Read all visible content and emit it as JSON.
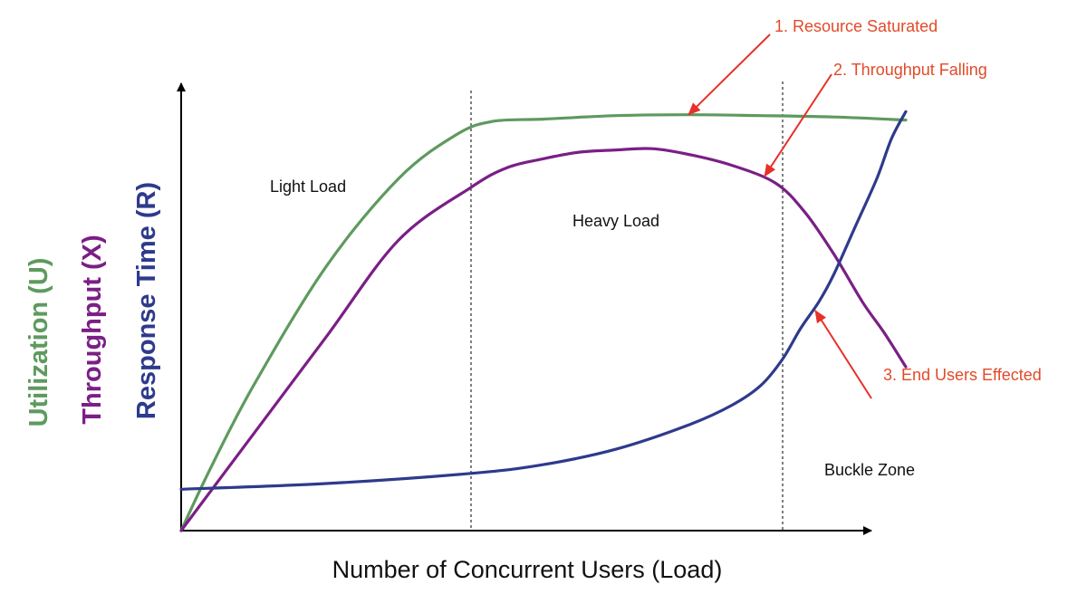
{
  "chart_data": {
    "type": "line",
    "title": "",
    "xlabel": "Number of  Concurrent Users (Load)",
    "ylabels": [
      {
        "text": "Utilization (U)",
        "color": "#5e9a5e"
      },
      {
        "text": "Throughput (X)",
        "color": "#7a1f86"
      },
      {
        "text": "Response Time (R)",
        "color": "#2e3a8c"
      }
    ],
    "xlim": [
      0,
      100
    ],
    "ylim": [
      0,
      100
    ],
    "grid": false,
    "series": [
      {
        "name": "Utilization (U)",
        "color": "#5e9a5e",
        "x": [
          0,
          4,
          10,
          20,
          30,
          38,
          43,
          50,
          60,
          70,
          80,
          90,
          100
        ],
        "y": [
          0,
          14,
          33,
          60,
          80,
          90,
          93,
          93.5,
          94.3,
          94.5,
          94.3,
          94,
          93.3
        ]
      },
      {
        "name": "Throughput (X)",
        "color": "#7a1f86",
        "x": [
          0,
          10,
          20,
          30,
          40,
          45,
          50,
          55,
          60,
          65,
          70,
          76,
          82,
          86,
          90,
          94,
          97,
          100
        ],
        "y": [
          0,
          22,
          44,
          66,
          78,
          82.5,
          84.5,
          86,
          86.5,
          86.8,
          85.5,
          83,
          79,
          72.5,
          63,
          52,
          45,
          37.2
        ]
      },
      {
        "name": "Response Time (R)",
        "color": "#2e3a8c",
        "x": [
          0,
          20,
          40,
          50,
          60,
          70,
          76,
          80,
          83,
          85.5,
          88,
          90,
          93,
          96,
          98,
          100
        ],
        "y": [
          9.4,
          10.7,
          13,
          15,
          18.5,
          24,
          28.5,
          33,
          39,
          46,
          52,
          58,
          69,
          80,
          89,
          95.2
        ]
      }
    ],
    "zones": [
      {
        "label": "Light Load",
        "x_boundary": 40
      },
      {
        "label": "Heavy Load",
        "x_boundary": 83
      },
      {
        "label": "Buckle Zone"
      }
    ],
    "annotations": [
      {
        "text": "1. Resource Saturated",
        "color": "#e24a28",
        "target": {
          "series": "Utilization (U)",
          "x": 70,
          "y": 94.5
        }
      },
      {
        "text": "2. Throughput Falling",
        "color": "#e24a28",
        "target": {
          "series": "Throughput (X)",
          "x": 80.5,
          "y": 80.5
        }
      },
      {
        "text": "3. End Users Effected",
        "color": "#e24a28",
        "target": {
          "series": "Response Time (R)",
          "x": 87.5,
          "y": 50
        }
      }
    ]
  }
}
